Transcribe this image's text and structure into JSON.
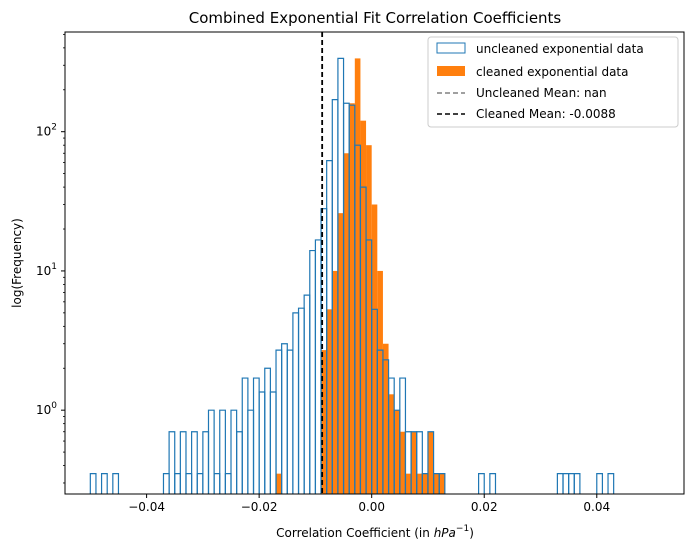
{
  "chart_data": {
    "type": "histogram",
    "title": "Combined Exponential Fit Correlation Coefficients",
    "xlabel_prefix": "Correlation Coefficient (in ",
    "xlabel_unit": "hPa",
    "xlabel_exp": "−1",
    "xlabel_suffix": ")",
    "ylabel": "log(Frequency)",
    "xlim": [
      -0.0545,
      0.0555
    ],
    "ylim": [
      0.25,
      520
    ],
    "yscale": "log",
    "grid": false,
    "legend_position": "top-right",
    "x_ticks": [
      {
        "value": -0.04,
        "label": "−0.04"
      },
      {
        "value": -0.02,
        "label": "−0.02"
      },
      {
        "value": 0.0,
        "label": "0.00"
      },
      {
        "value": 0.02,
        "label": "0.02"
      },
      {
        "value": 0.04,
        "label": "0.04"
      }
    ],
    "y_ticks": [
      {
        "value": 1,
        "base": "10",
        "exp": "0"
      },
      {
        "value": 10,
        "base": "10",
        "exp": "1"
      },
      {
        "value": 100,
        "base": "10",
        "exp": "2"
      }
    ],
    "bin_start": -0.05,
    "bin_width": 0.001,
    "series": [
      {
        "name": "uncleaned exponential data",
        "style": "step",
        "color": "#1f77b4",
        "values": [
          0.35,
          0,
          0.35,
          0,
          0.35,
          0,
          0,
          0,
          0,
          0,
          0,
          0,
          0,
          0.35,
          0.7,
          0.35,
          0.7,
          0.35,
          0.7,
          0.35,
          0.7,
          1.0,
          0.35,
          1.0,
          0.35,
          1.0,
          0.7,
          1.7,
          1.0,
          1.7,
          1.35,
          2.0,
          1.35,
          2.7,
          3.0,
          2.7,
          5.0,
          5.4,
          6.7,
          14,
          16.7,
          28,
          62,
          170,
          336,
          160,
          155,
          80,
          40,
          16.7,
          5.3,
          2.7,
          2.3,
          1.7,
          1.0,
          1.7,
          0.7,
          0.7,
          0.7,
          0.35,
          0.7,
          0.35,
          0.35,
          0,
          0,
          0,
          0,
          0,
          0,
          0.35,
          0,
          0.35,
          0,
          0,
          0,
          0,
          0,
          0,
          0,
          0,
          0,
          0,
          0,
          0.35,
          0.35,
          0.35,
          0.35,
          0,
          0,
          0,
          0.35,
          0,
          0.35,
          0,
          0,
          0,
          0,
          0,
          0,
          0
        ]
      },
      {
        "name": "cleaned exponential data",
        "style": "filled",
        "color": "#ff7f0e",
        "values": [
          0,
          0,
          0,
          0,
          0,
          0,
          0,
          0,
          0,
          0,
          0,
          0,
          0,
          0,
          0,
          0,
          0,
          0,
          0,
          0,
          0,
          0,
          0,
          0,
          0,
          0,
          0,
          0,
          0,
          0,
          0,
          0,
          0,
          0.35,
          0,
          0,
          0,
          0,
          0,
          0,
          0,
          2.7,
          5.3,
          10,
          26,
          70,
          160,
          336,
          120,
          80,
          30,
          10,
          3.0,
          1.3,
          1.0,
          0.7,
          0.35,
          0.7,
          0.35,
          0.35,
          0.7,
          0.35,
          0.35,
          0,
          0,
          0,
          0,
          0,
          0,
          0,
          0,
          0,
          0,
          0,
          0,
          0,
          0,
          0,
          0,
          0,
          0,
          0,
          0,
          0,
          0,
          0,
          0,
          0,
          0,
          0,
          0,
          0,
          0,
          0,
          0,
          0,
          0,
          0,
          0,
          0
        ]
      }
    ],
    "mean_lines": [
      {
        "name": "Uncleaned Mean: nan",
        "value": null,
        "color": "#808080",
        "dash": "5,3"
      },
      {
        "name": "Cleaned Mean: -0.0088",
        "value": -0.0088,
        "color": "#000000",
        "dash": "5,3"
      }
    ]
  }
}
